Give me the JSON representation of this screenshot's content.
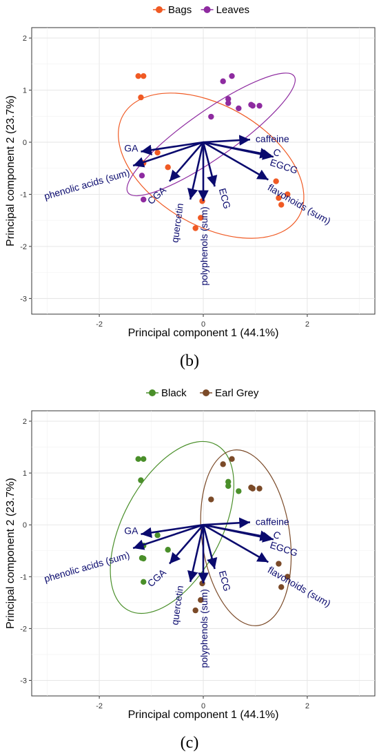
{
  "chart_data": [
    {
      "type": "scatter",
      "panel": "(b)",
      "xlabel": "Principal component 1 (44.1%)",
      "ylabel": "Principal component 2 (23.7%)",
      "xlim": [
        -3.3,
        3.3
      ],
      "ylim": [
        -3.3,
        2.2
      ],
      "xticks": [
        -2,
        0,
        2
      ],
      "yticks": [
        -3,
        -2,
        -1,
        0,
        1,
        2
      ],
      "grid": true,
      "legend_position": "top",
      "series": [
        {
          "name": "Bags",
          "color": "#f05a24",
          "points": [
            [
              -1.25,
              1.27
            ],
            [
              -1.15,
              1.27
            ],
            [
              -1.2,
              0.86
            ],
            [
              -1.15,
              -0.4
            ],
            [
              -0.88,
              -0.2
            ],
            [
              -0.68,
              -0.48
            ],
            [
              -0.15,
              -1.65
            ],
            [
              -0.05,
              -1.45
            ],
            [
              -0.02,
              -1.13
            ],
            [
              1.45,
              -1.07
            ],
            [
              1.5,
              -1.2
            ],
            [
              1.62,
              -1.0
            ],
            [
              1.4,
              -0.75
            ]
          ]
        },
        {
          "name": "Leaves",
          "color": "#8e2ba0",
          "points": [
            [
              0.38,
              1.17
            ],
            [
              0.55,
              1.27
            ],
            [
              0.48,
              0.83
            ],
            [
              0.48,
              0.75
            ],
            [
              0.68,
              0.65
            ],
            [
              0.92,
              0.72
            ],
            [
              0.95,
              0.7
            ],
            [
              1.08,
              0.7
            ],
            [
              0.15,
              0.49
            ],
            [
              -1.18,
              -0.64
            ],
            [
              -1.15,
              -1.1
            ]
          ]
        }
      ],
      "ellipses": [
        {
          "series": "Bags",
          "center": [
            0.15,
            -0.45
          ],
          "rx": 1.95,
          "ry": 1.15,
          "angle_deg": -30
        },
        {
          "series": "Leaves",
          "center": [
            0.15,
            0.15
          ],
          "rx": 1.95,
          "ry": 0.45,
          "angle_deg": 35
        }
      ],
      "vectors": [
        {
          "label": "caffeine",
          "x": 0.9,
          "y": 0.05
        },
        {
          "label": "C",
          "x": 1.3,
          "y": -0.25
        },
        {
          "label": "EGCG",
          "x": 1.35,
          "y": -0.28
        },
        {
          "label": "flavonoids (sum)",
          "x": 1.25,
          "y": -0.72
        },
        {
          "label": "GA",
          "x": -1.2,
          "y": -0.18
        },
        {
          "label": "phenolic acids (sum)",
          "x": -1.35,
          "y": -0.45
        },
        {
          "label": "CGA",
          "x": -0.65,
          "y": -0.75
        },
        {
          "label": "quercetin",
          "x": -0.25,
          "y": -1.1
        },
        {
          "label": "ECG",
          "x": 0.22,
          "y": -0.85
        },
        {
          "label": "polyphenols (sum)",
          "x": 0.0,
          "y": -1.13
        }
      ]
    },
    {
      "type": "scatter",
      "panel": "(c)",
      "xlabel": "Principal component 1 (44.1%)",
      "ylabel": "Principal component 2 (23.7%)",
      "xlim": [
        -3.3,
        3.3
      ],
      "ylim": [
        -3.3,
        2.2
      ],
      "xticks": [
        -2,
        0,
        2
      ],
      "yticks": [
        -3,
        -2,
        -1,
        0,
        1,
        2
      ],
      "grid": true,
      "legend_position": "top",
      "series": [
        {
          "name": "Black",
          "color": "#4a8f2a",
          "points": [
            [
              -1.25,
              1.27
            ],
            [
              -1.15,
              1.27
            ],
            [
              -1.2,
              0.86
            ],
            [
              -0.88,
              -0.2
            ],
            [
              -1.15,
              -0.4
            ],
            [
              -0.68,
              -0.48
            ],
            [
              -1.18,
              -0.64
            ],
            [
              -1.15,
              -0.65
            ],
            [
              -1.15,
              -1.1
            ],
            [
              0.48,
              0.83
            ],
            [
              0.48,
              0.75
            ],
            [
              0.68,
              0.65
            ]
          ]
        },
        {
          "name": "Earl Grey",
          "color": "#7b4a28",
          "points": [
            [
              0.38,
              1.17
            ],
            [
              0.55,
              1.27
            ],
            [
              0.92,
              0.72
            ],
            [
              0.95,
              0.7
            ],
            [
              1.08,
              0.7
            ],
            [
              0.15,
              0.49
            ],
            [
              1.45,
              -0.75
            ],
            [
              1.62,
              -1.0
            ],
            [
              1.5,
              -1.2
            ],
            [
              -0.02,
              -1.13
            ],
            [
              -0.05,
              -1.45
            ],
            [
              -0.15,
              -1.65
            ]
          ]
        }
      ],
      "ellipses": [
        {
          "series": "Black",
          "center": [
            -0.6,
            -0.05
          ],
          "rx": 1.8,
          "ry": 0.95,
          "angle_deg": 62
        },
        {
          "series": "Earl Grey",
          "center": [
            0.82,
            -0.25
          ],
          "rx": 1.7,
          "ry": 0.85,
          "angle_deg": -82
        }
      ],
      "vectors": [
        {
          "label": "caffeine",
          "x": 0.9,
          "y": 0.05
        },
        {
          "label": "C",
          "x": 1.3,
          "y": -0.25
        },
        {
          "label": "EGCG",
          "x": 1.35,
          "y": -0.28
        },
        {
          "label": "flavonoids (sum)",
          "x": 1.25,
          "y": -0.72
        },
        {
          "label": "GA",
          "x": -1.2,
          "y": -0.18
        },
        {
          "label": "phenolic acids (sum)",
          "x": -1.35,
          "y": -0.45
        },
        {
          "label": "CGA",
          "x": -0.65,
          "y": -0.75
        },
        {
          "label": "quercetin",
          "x": -0.25,
          "y": -1.1
        },
        {
          "label": "ECG",
          "x": 0.22,
          "y": -0.85
        },
        {
          "label": "polyphenols (sum)",
          "x": 0.0,
          "y": -1.13
        }
      ]
    }
  ]
}
